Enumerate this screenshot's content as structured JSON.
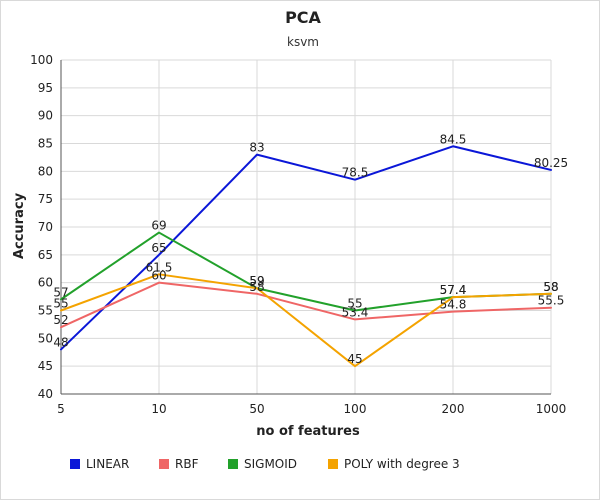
{
  "chart_data": {
    "type": "line",
    "title": "PCA",
    "subtitle": "ksvm",
    "xlabel": "no of features",
    "ylabel": "Accuracy",
    "categories": [
      "5",
      "10",
      "50",
      "100",
      "200",
      "1000"
    ],
    "ylim": [
      40,
      100
    ],
    "yticks": [
      40,
      45,
      50,
      55,
      60,
      65,
      70,
      75,
      80,
      85,
      90,
      95,
      100
    ],
    "grid": true,
    "legend_position": "bottom",
    "series": [
      {
        "name": "LINEAR",
        "color": "#0b17d8",
        "values": [
          48,
          65,
          83,
          78.5,
          84.5,
          80.25
        ],
        "labels": [
          "48",
          "65",
          "83",
          "78.5",
          "84.5",
          "80.25"
        ]
      },
      {
        "name": "RBF",
        "color": "#ef6666",
        "values": [
          52,
          60,
          58,
          53.4,
          54.8,
          55.5
        ],
        "labels": [
          "52",
          "60",
          "58",
          "53.4",
          "54.8",
          "55.5"
        ]
      },
      {
        "name": "SIGMOID",
        "color": "#22a12b",
        "values": [
          57,
          69,
          59,
          55,
          57.4,
          58
        ],
        "labels": [
          "57",
          "69",
          "59",
          "55",
          "57.4",
          "58"
        ]
      },
      {
        "name": "POLY with degree 3",
        "color": "#f4a300",
        "values": [
          55,
          61.5,
          59,
          45,
          57.4,
          58
        ],
        "labels": [
          "55",
          "61.5",
          "59",
          "45",
          "57.4",
          "58"
        ]
      }
    ]
  }
}
